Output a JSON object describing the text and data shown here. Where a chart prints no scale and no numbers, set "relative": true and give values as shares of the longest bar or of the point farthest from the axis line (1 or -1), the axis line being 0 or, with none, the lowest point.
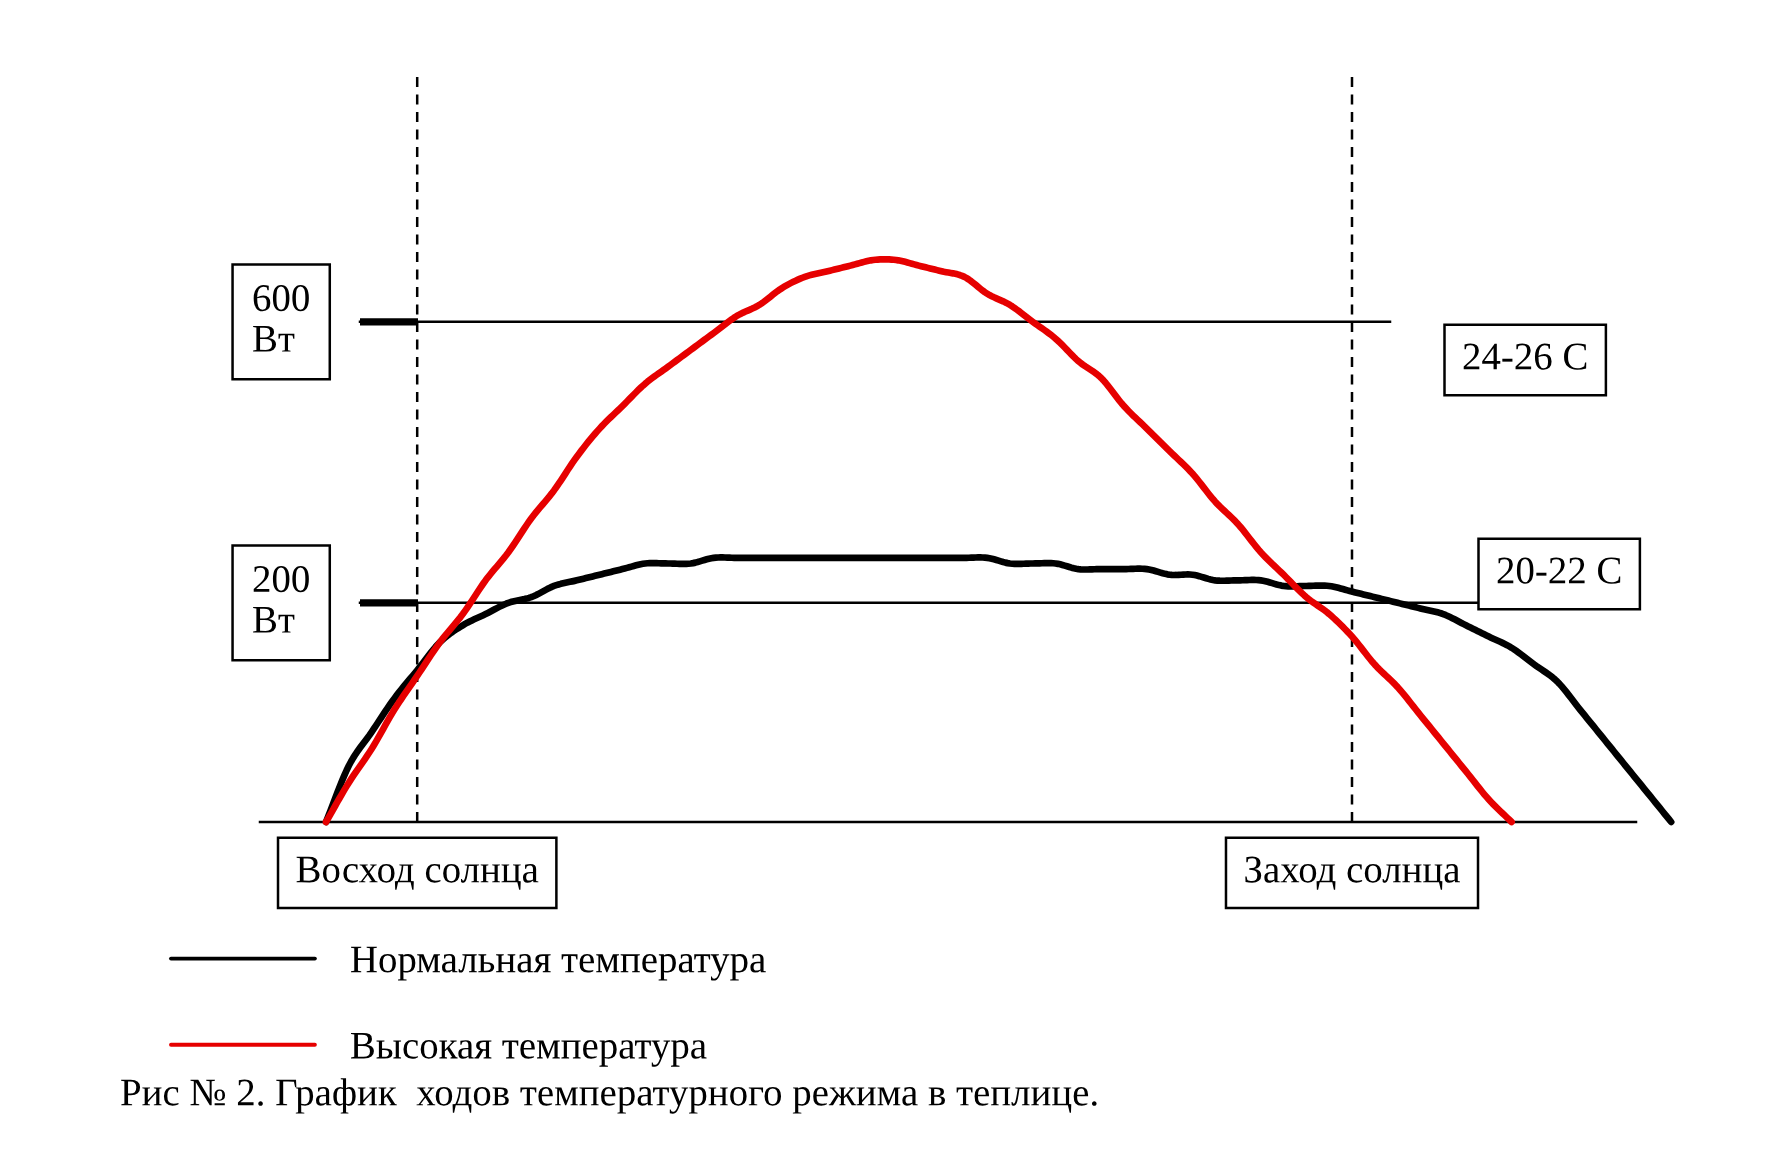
{
  "chart_data": {
    "type": "line",
    "relative": true,
    "categories": [
      null,
      null,
      null,
      null,
      "Восход солнца",
      null,
      null,
      null,
      null,
      null,
      null,
      null,
      null,
      null,
      null,
      null,
      null,
      null,
      null,
      null,
      null,
      null,
      null,
      null,
      null,
      null,
      null,
      null,
      null,
      null,
      null,
      null,
      null,
      null,
      null,
      null,
      null,
      null,
      null,
      null,
      null,
      null,
      null,
      null,
      null,
      "Заход солнца",
      null,
      null,
      null,
      null,
      null,
      null,
      null,
      null,
      null,
      null,
      null,
      null,
      null,
      null
    ],
    "series": [
      {
        "name": "Нормальная температура",
        "color": "#000000",
        "values": [
          0,
          0.1,
          0.16,
          0.22,
          0.27,
          0.32,
          0.35,
          0.37,
          0.39,
          0.4,
          0.42,
          0.43,
          0.44,
          0.45,
          0.46,
          0.46,
          0.46,
          0.47,
          0.47,
          0.47,
          0.47,
          0.47,
          0.47,
          0.47,
          0.47,
          0.47,
          0.47,
          0.47,
          0.47,
          0.47,
          0.46,
          0.46,
          0.46,
          0.45,
          0.45,
          0.45,
          0.45,
          0.44,
          0.44,
          0.43,
          0.43,
          0.43,
          0.42,
          0.42,
          0.42,
          0.41,
          0.4,
          0.39,
          0.38,
          0.37,
          0.35,
          0.33,
          0.31,
          0.28,
          0.25,
          0.2,
          0.15,
          0.1,
          0.05,
          0
        ]
      },
      {
        "name": "Высокая температура",
        "color": "#e60000",
        "values": [
          0,
          0.07,
          0.13,
          0.2,
          0.26,
          0.32,
          0.37,
          0.43,
          0.48,
          0.54,
          0.59,
          0.65,
          0.7,
          0.74,
          0.78,
          0.81,
          0.84,
          0.87,
          0.9,
          0.92,
          0.95,
          0.97,
          0.98,
          0.99,
          1,
          1,
          0.99,
          0.98,
          0.97,
          0.94,
          0.92,
          0.89,
          0.86,
          0.82,
          0.79,
          0.74,
          0.7,
          0.66,
          0.62,
          0.57,
          0.53,
          0.48,
          0.44,
          0.4,
          0.37,
          0.33,
          0.28,
          0.24,
          0.19,
          0.14,
          0.09,
          0.04,
          0,
          null,
          null,
          null,
          null,
          null,
          null,
          null
        ]
      }
    ],
    "ref_lines": [
      {
        "axis": "y",
        "value": 0.89,
        "label": "600\nВт"
      },
      {
        "axis": "y",
        "value": 0.39,
        "label": "200\nВт"
      },
      {
        "axis": "x",
        "value": "Восход солнца",
        "line_style": "dashed"
      },
      {
        "axis": "x",
        "value": "Заход солнца",
        "line_style": "dashed"
      }
    ],
    "annotations": [
      "24-26 С",
      "20-22 С",
      "Рис № 2. График  ходов температурного режима в теплице."
    ],
    "legend": "bottom left"
  }
}
